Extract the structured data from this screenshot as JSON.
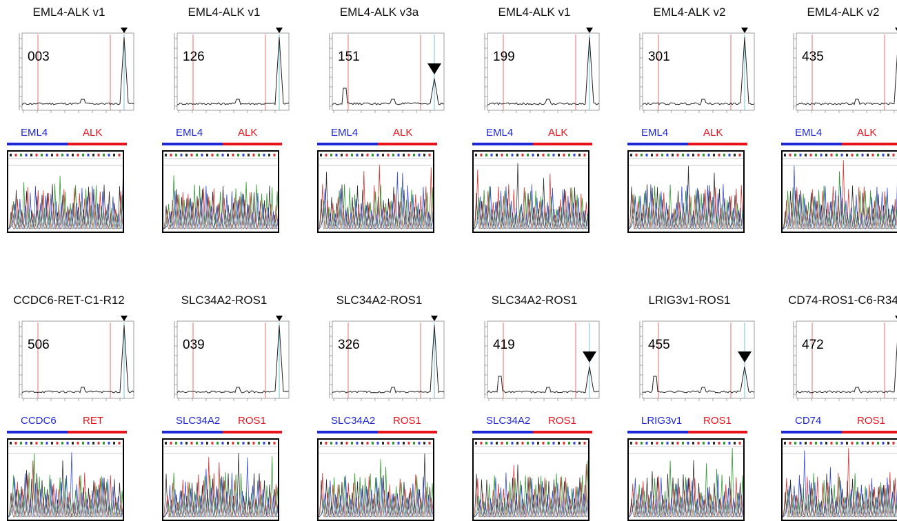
{
  "colors": {
    "gene_a": "#1d27d6",
    "gene_b": "#e8121a",
    "peak": "#3da4c8",
    "marker": "#e23030"
  },
  "panels": [
    {
      "title": "EML4-ALK v1",
      "sample_id": "003",
      "gene_a": "EML4",
      "gene_b": "ALK",
      "arrow_on": "tall"
    },
    {
      "title": "EML4-ALK v1",
      "sample_id": "126",
      "gene_a": "EML4",
      "gene_b": "ALK",
      "arrow_on": "tall"
    },
    {
      "title": "EML4-ALK v3a",
      "sample_id": "151",
      "gene_a": "EML4",
      "gene_b": "ALK",
      "arrow_on": "short"
    },
    {
      "title": "EML4-ALK v1",
      "sample_id": "199",
      "gene_a": "EML4",
      "gene_b": "ALK",
      "arrow_on": "tall"
    },
    {
      "title": "EML4-ALK v2",
      "sample_id": "301",
      "gene_a": "EML4",
      "gene_b": "ALK",
      "arrow_on": "tall"
    },
    {
      "title": "EML4-ALK v2",
      "sample_id": "435",
      "gene_a": "EML4",
      "gene_b": "ALK",
      "arrow_on": "tall"
    },
    {
      "title": "CCDC6-RET-C1-R12",
      "sample_id": "506",
      "gene_a": "CCDC6",
      "gene_b": "RET",
      "arrow_on": "tall"
    },
    {
      "title": "SLC34A2-ROS1",
      "sample_id": "039",
      "gene_a": "SLC34A2",
      "gene_b": "ROS1",
      "arrow_on": "tall"
    },
    {
      "title": "SLC34A2-ROS1",
      "sample_id": "326",
      "gene_a": "SLC34A2",
      "gene_b": "ROS1",
      "arrow_on": "tall"
    },
    {
      "title": "SLC34A2-ROS1",
      "sample_id": "419",
      "gene_a": "SLC34A2",
      "gene_b": "ROS1",
      "arrow_on": "short"
    },
    {
      "title": "LRIG3v1-ROS1",
      "sample_id": "455",
      "gene_a": "LRIG3v1",
      "gene_b": "ROS1",
      "arrow_on": "short"
    },
    {
      "title": "CD74-ROS1-C6-R34",
      "sample_id": "472",
      "gene_a": "CD74",
      "gene_b": "ROS1",
      "arrow_on": "tall"
    }
  ]
}
